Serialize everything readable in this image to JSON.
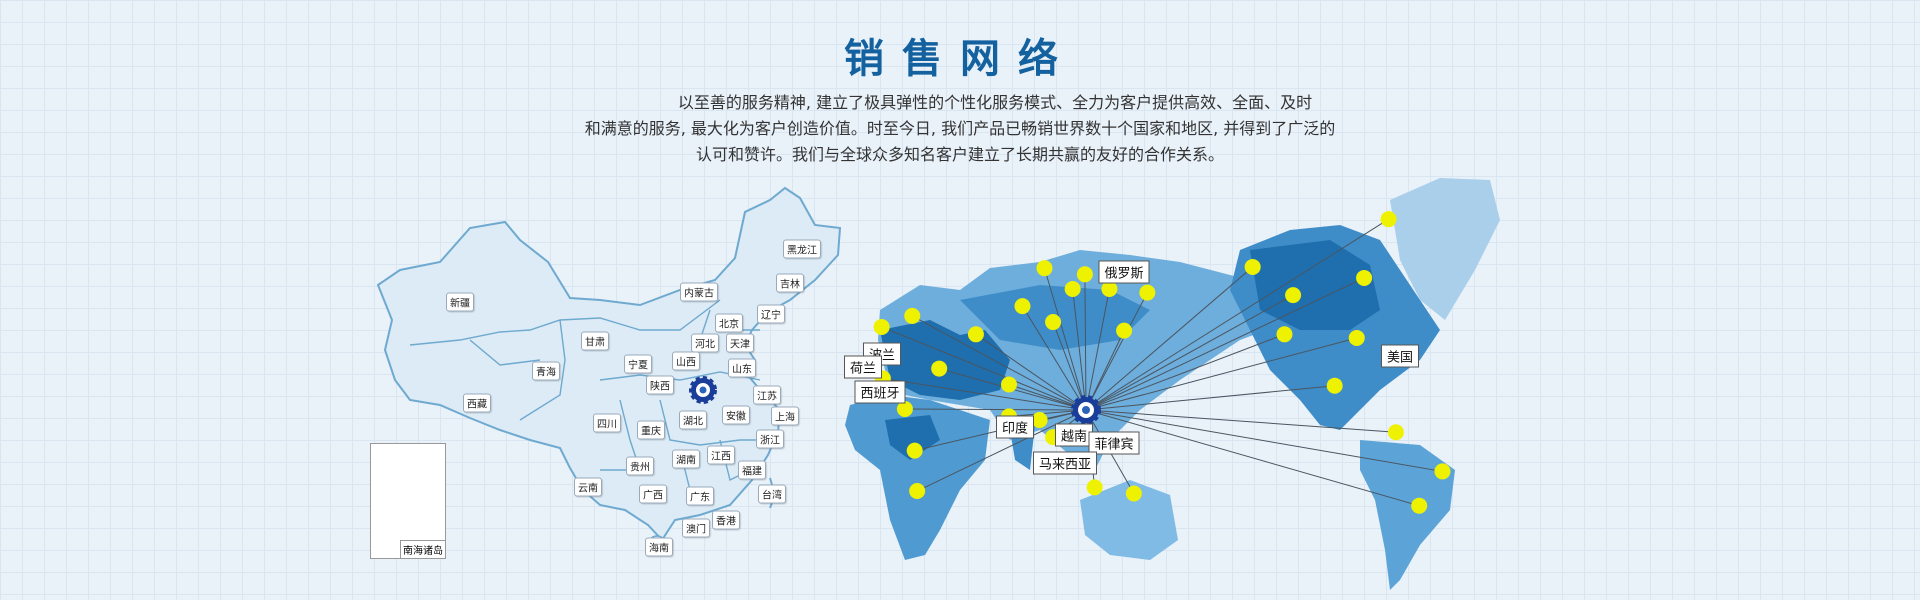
{
  "title": "销售网络",
  "intro": [
    "以至善的服务精神, 建立了极具弹性的个性化服务模式、全力为客户提供高效、全面、及时",
    "和满意的服务, 最大化为客户创造价值。时至今日, 我们产品已畅销世界数十个国家和地区, 并得到了广泛的",
    "认可和赞许。我们与全球众多知名客户建立了长期共赢的友好的合作关系。"
  ],
  "china_map": {
    "provinces": [
      "新疆",
      "西藏",
      "青海",
      "甘肃",
      "内蒙古",
      "黑龙江",
      "吉林",
      "辽宁",
      "北京",
      "河北",
      "天津",
      "山西",
      "山东",
      "宁夏",
      "陕西",
      "江苏",
      "上海",
      "安徽",
      "湖北",
      "四川",
      "重庆",
      "浙江",
      "湖南",
      "江西",
      "贵州",
      "福建",
      "云南",
      "广西",
      "广东",
      "台湾",
      "香港",
      "澳门",
      "海南"
    ],
    "inset_label": "南海诸岛"
  },
  "world_map": {
    "countries": [
      "俄罗斯",
      "波兰",
      "荷兰",
      "西班牙",
      "印度",
      "越南",
      "菲律宾",
      "马来西亚",
      "美国"
    ]
  },
  "colors": {
    "title": "#14619f",
    "marker": "#eef200",
    "land_dark": "#1f6fae",
    "land_light": "#a9cfea",
    "china_fill": "#dcebf5"
  },
  "icons": {
    "hub": "company-gear-logo-icon",
    "marker": "location-dot-icon"
  }
}
